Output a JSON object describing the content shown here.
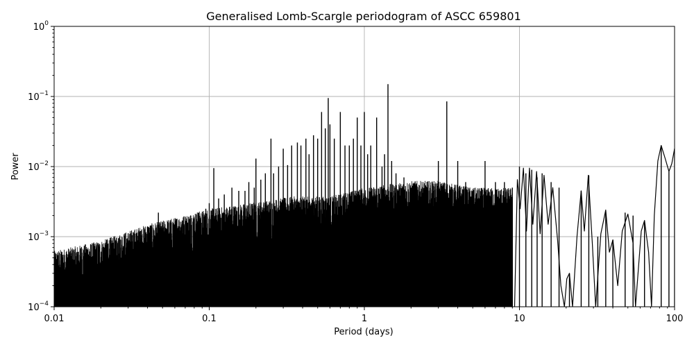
{
  "chart_data": {
    "type": "line",
    "title": "Generalised Lomb-Scargle periodogram of ASCC 659801",
    "xlabel": "Period (days)",
    "ylabel": "Power",
    "xscale": "log",
    "yscale": "log",
    "xlim": [
      0.01,
      100
    ],
    "ylim": [
      0.0001,
      1
    ],
    "grid": true,
    "x_ticks": [
      {
        "value": 0.01,
        "label": "0.01"
      },
      {
        "value": 0.1,
        "label": "0.1"
      },
      {
        "value": 1,
        "label": "1"
      },
      {
        "value": 10,
        "label": "10"
      },
      {
        "value": 100,
        "label": "100"
      }
    ],
    "y_ticks": [
      {
        "value": 0.0001,
        "base": "10",
        "exp": "−4"
      },
      {
        "value": 0.001,
        "base": "10",
        "exp": "−3"
      },
      {
        "value": 0.01,
        "base": "10",
        "exp": "−2"
      },
      {
        "value": 0.1,
        "base": "10",
        "exp": "−1"
      },
      {
        "value": 1,
        "base": "10",
        "exp": "0"
      }
    ],
    "line_color": "#000000",
    "noise_envelope": [
      [
        0.01,
        0.0005
      ],
      [
        0.02,
        0.0007
      ],
      [
        0.04,
        0.0012
      ],
      [
        0.06,
        0.0015
      ],
      [
        0.1,
        0.002
      ],
      [
        0.2,
        0.0025
      ],
      [
        0.35,
        0.003
      ],
      [
        0.6,
        0.003
      ],
      [
        1.0,
        0.004
      ],
      [
        2.0,
        0.005
      ],
      [
        3.0,
        0.005
      ],
      [
        5.0,
        0.004
      ],
      [
        9.0,
        0.004
      ]
    ],
    "peaks": [
      [
        0.0104,
        0.00045
      ],
      [
        0.0125,
        0.0006
      ],
      [
        0.015,
        0.0007
      ],
      [
        0.018,
        0.0008
      ],
      [
        0.022,
        0.0009
      ],
      [
        0.026,
        0.00095
      ],
      [
        0.03,
        0.001
      ],
      [
        0.033,
        0.0011
      ],
      [
        0.036,
        0.0012
      ],
      [
        0.04,
        0.0014
      ],
      [
        0.047,
        0.0022
      ],
      [
        0.053,
        0.0013
      ],
      [
        0.06,
        0.0015
      ],
      [
        0.067,
        0.0017
      ],
      [
        0.076,
        0.002
      ],
      [
        0.085,
        0.0022
      ],
      [
        0.095,
        0.0025
      ],
      [
        0.1,
        0.003
      ],
      [
        0.107,
        0.0095
      ],
      [
        0.115,
        0.0035
      ],
      [
        0.125,
        0.004
      ],
      [
        0.14,
        0.005
      ],
      [
        0.155,
        0.0045
      ],
      [
        0.17,
        0.0045
      ],
      [
        0.18,
        0.006
      ],
      [
        0.195,
        0.005
      ],
      [
        0.2,
        0.013
      ],
      [
        0.215,
        0.0065
      ],
      [
        0.23,
        0.008
      ],
      [
        0.25,
        0.025
      ],
      [
        0.26,
        0.008
      ],
      [
        0.28,
        0.01
      ],
      [
        0.3,
        0.018
      ],
      [
        0.32,
        0.0105
      ],
      [
        0.34,
        0.02
      ],
      [
        0.37,
        0.022
      ],
      [
        0.39,
        0.02
      ],
      [
        0.42,
        0.025
      ],
      [
        0.44,
        0.015
      ],
      [
        0.47,
        0.028
      ],
      [
        0.5,
        0.025
      ],
      [
        0.53,
        0.06
      ],
      [
        0.56,
        0.035
      ],
      [
        0.585,
        0.095
      ],
      [
        0.6,
        0.04
      ],
      [
        0.64,
        0.025
      ],
      [
        0.7,
        0.06
      ],
      [
        0.75,
        0.02
      ],
      [
        0.8,
        0.02
      ],
      [
        0.85,
        0.025
      ],
      [
        0.9,
        0.05
      ],
      [
        0.95,
        0.02
      ],
      [
        1.0,
        0.06
      ],
      [
        1.05,
        0.015
      ],
      [
        1.1,
        0.02
      ],
      [
        1.2,
        0.05
      ],
      [
        1.3,
        0.01
      ],
      [
        1.35,
        0.015
      ],
      [
        1.42,
        0.15
      ],
      [
        1.5,
        0.012
      ],
      [
        1.6,
        0.008
      ],
      [
        1.8,
        0.007
      ],
      [
        2.0,
        0.005
      ],
      [
        2.2,
        0.004
      ],
      [
        2.5,
        0.0045
      ],
      [
        2.8,
        0.0045
      ],
      [
        3.0,
        0.012
      ],
      [
        3.4,
        0.085
      ],
      [
        3.6,
        0.004
      ],
      [
        4.0,
        0.012
      ],
      [
        4.5,
        0.006
      ],
      [
        5.0,
        0.0045
      ],
      [
        5.5,
        0.0035
      ],
      [
        6.0,
        0.012
      ],
      [
        6.5,
        0.003
      ],
      [
        7.0,
        0.006
      ],
      [
        7.5,
        0.0035
      ],
      [
        8.0,
        0.006
      ],
      [
        9.0,
        0.005
      ],
      [
        10.0,
        0.01
      ],
      [
        11.0,
        0.008
      ],
      [
        12.0,
        0.009
      ],
      [
        13.0,
        0.007
      ],
      [
        14.0,
        0.008
      ],
      [
        16.0,
        0.006
      ],
      [
        18.0,
        0.005
      ],
      [
        21.0,
        0.0003
      ],
      [
        25.0,
        0.0045
      ],
      [
        28.0,
        0.0075
      ],
      [
        32.0,
        0.001
      ],
      [
        36.0,
        0.0023
      ],
      [
        40.0,
        0.0009
      ],
      [
        48.0,
        0.0022
      ],
      [
        54.0,
        0.002
      ],
      [
        64.0,
        0.0017
      ],
      [
        70.0,
        0.0001
      ],
      [
        82.0,
        0.02
      ],
      [
        92.0,
        0.0085
      ],
      [
        100.0,
        0.018
      ]
    ],
    "low_freq_curve": [
      [
        9.3,
        0.0001
      ],
      [
        9.7,
        0.0065
      ],
      [
        10.1,
        0.0025
      ],
      [
        10.6,
        0.0095
      ],
      [
        11.1,
        0.0012
      ],
      [
        11.6,
        0.0095
      ],
      [
        12.2,
        0.0015
      ],
      [
        12.9,
        0.0085
      ],
      [
        13.6,
        0.0011
      ],
      [
        14.4,
        0.0075
      ],
      [
        15.3,
        0.0015
      ],
      [
        16.4,
        0.005
      ],
      [
        17.6,
        0.0009
      ],
      [
        18.5,
        0.0002
      ],
      [
        19.5,
        0.0001
      ],
      [
        20.2,
        0.00025
      ],
      [
        21.0,
        0.0003
      ],
      [
        22.0,
        0.0001
      ],
      [
        23.5,
        0.001
      ],
      [
        25.0,
        0.0045
      ],
      [
        26.2,
        0.0012
      ],
      [
        27.8,
        0.0075
      ],
      [
        29.5,
        0.0008
      ],
      [
        31.0,
        0.0001
      ],
      [
        33.5,
        0.0011
      ],
      [
        36.0,
        0.0024
      ],
      [
        38.0,
        0.0006
      ],
      [
        40.0,
        0.0009
      ],
      [
        43.0,
        0.0002
      ],
      [
        46.0,
        0.0012
      ],
      [
        50.0,
        0.0021
      ],
      [
        54.0,
        0.0008
      ],
      [
        56.0,
        0.0001
      ],
      [
        61.0,
        0.0012
      ],
      [
        64.0,
        0.0017
      ],
      [
        68.0,
        0.0006
      ],
      [
        71.0,
        0.0001
      ],
      [
        74.0,
        0.002
      ],
      [
        78.0,
        0.012
      ],
      [
        82.0,
        0.02
      ],
      [
        87.0,
        0.013
      ],
      [
        92.0,
        0.0085
      ],
      [
        96.0,
        0.011
      ],
      [
        100.0,
        0.018
      ]
    ]
  }
}
